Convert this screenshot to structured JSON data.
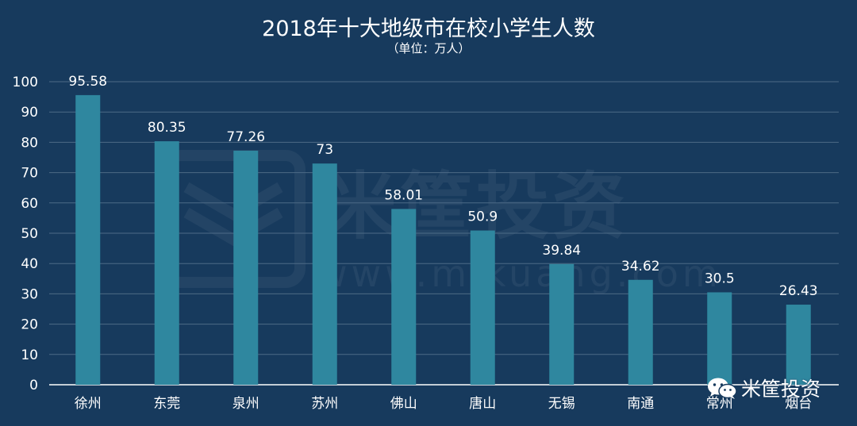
{
  "chart_data": {
    "type": "bar",
    "title": "2018年十大地级市在校小学生人数",
    "subtitle": "（单位：万人）",
    "categories": [
      "徐州",
      "东莞",
      "泉州",
      "苏州",
      "佛山",
      "唐山",
      "无锡",
      "南通",
      "常州",
      "烟台"
    ],
    "values": [
      95.58,
      80.35,
      77.26,
      73,
      58.01,
      50.9,
      39.84,
      34.62,
      30.5,
      26.43
    ],
    "value_labels": [
      "95.58",
      "80.35",
      "77.26",
      "73",
      "58.01",
      "50.9",
      "39.84",
      "34.62",
      "30.5",
      "26.43"
    ],
    "ylim": [
      0,
      100
    ],
    "yticks": [
      "0",
      "10",
      "20",
      "30",
      "40",
      "50",
      "60",
      "70",
      "80",
      "90",
      "100"
    ],
    "grid": true,
    "colors": {
      "background": "#173a5d",
      "bar": "#2f879f",
      "grid": "#4d6a86",
      "axis": "#ffffff",
      "text": "#ffffff"
    }
  },
  "watermark": {
    "text": "米筐投资",
    "url": "www.mikuang.com"
  },
  "brand": {
    "icon": "wechat-icon",
    "text": "米筐投资"
  }
}
